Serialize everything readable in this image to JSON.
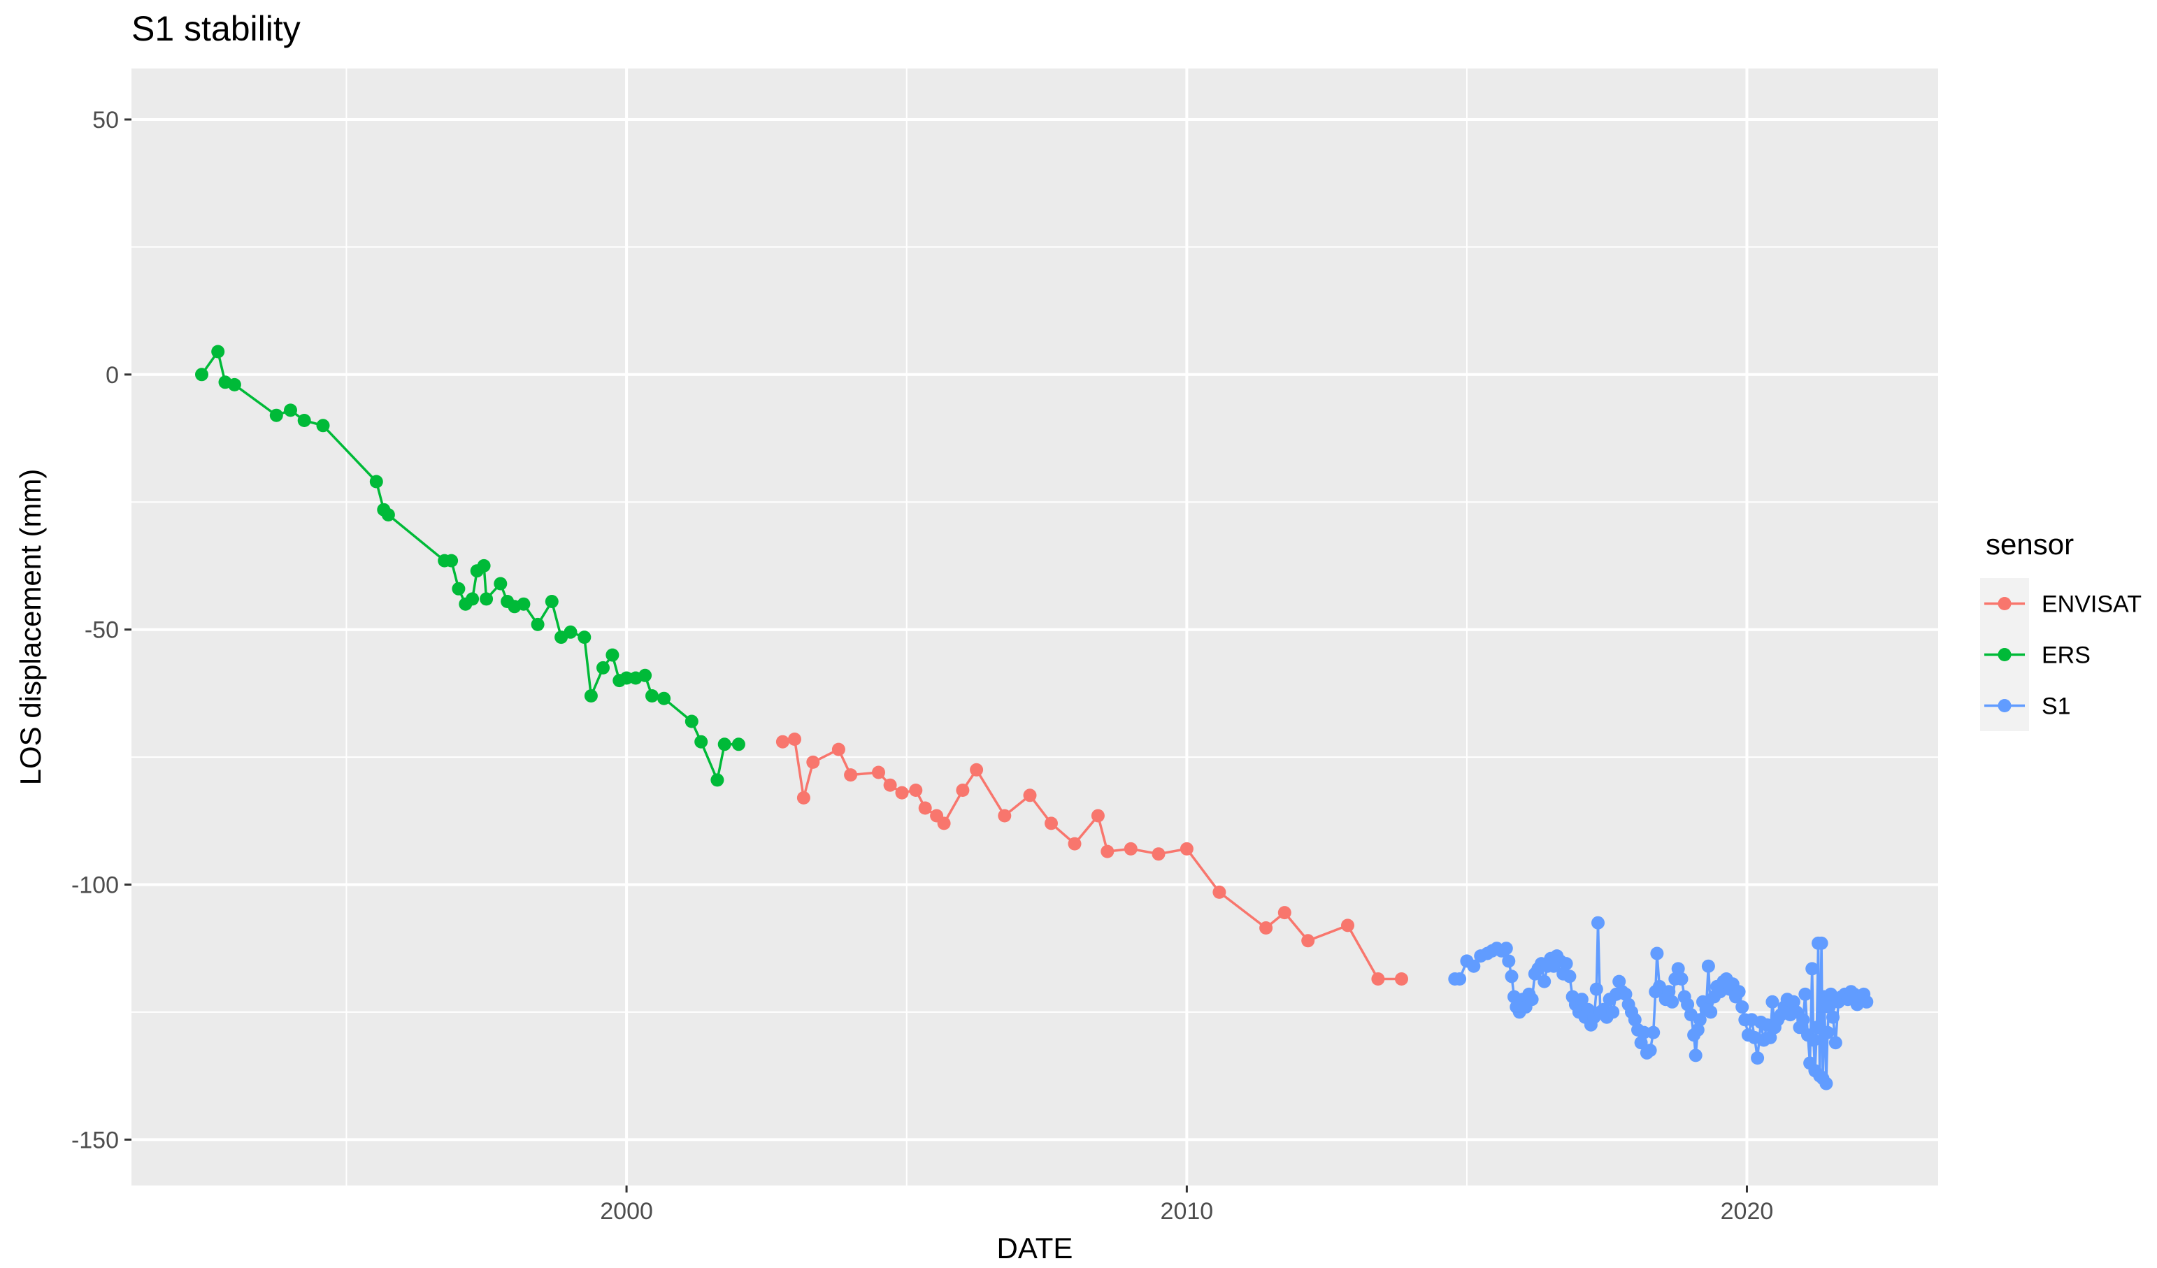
{
  "chart_data": {
    "type": "line",
    "title": "S1 stability",
    "xlabel": "DATE",
    "ylabel": "LOS displacement (mm)",
    "x_scale": "date",
    "xlim": [
      "1991-03-01",
      "2023-06-01"
    ],
    "ylim": [
      -159,
      60
    ],
    "x_ticks": [
      {
        "value": "2000-01-01",
        "label": "2000"
      },
      {
        "value": "2010-01-01",
        "label": "2010"
      },
      {
        "value": "2020-01-01",
        "label": "2020"
      }
    ],
    "y_ticks": [
      {
        "value": 50,
        "label": "50"
      },
      {
        "value": 0,
        "label": "0"
      },
      {
        "value": -50,
        "label": "-50"
      },
      {
        "value": -100,
        "label": "-100"
      },
      {
        "value": -150,
        "label": "-150"
      }
    ],
    "grid": true,
    "legend": {
      "title": "sensor",
      "position": "right",
      "entries": [
        {
          "label": "ENVISAT",
          "color": "#F8766D"
        },
        {
          "label": "ERS",
          "color": "#00BA38"
        },
        {
          "label": "S1",
          "color": "#619CFF"
        }
      ]
    },
    "series": [
      {
        "name": "ERS",
        "color": "#00BA38",
        "points": [
          [
            "1992-06-01",
            0
          ],
          [
            "1992-09-15",
            4.5
          ],
          [
            "1992-11-01",
            -1.5
          ],
          [
            "1993-01-01",
            -2
          ],
          [
            "1993-10-01",
            -8
          ],
          [
            "1994-01-01",
            -7
          ],
          [
            "1994-04-01",
            -9
          ],
          [
            "1994-08-01",
            -10
          ],
          [
            "1995-07-15",
            -21
          ],
          [
            "1995-09-01",
            -26.5
          ],
          [
            "1995-10-01",
            -27.5
          ],
          [
            "1996-10-01",
            -36.5
          ],
          [
            "1996-11-15",
            -36.5
          ],
          [
            "1997-01-01",
            -42
          ],
          [
            "1997-02-15",
            -45
          ],
          [
            "1997-04-01",
            -44
          ],
          [
            "1997-05-01",
            -38.5
          ],
          [
            "1997-06-15",
            -37.5
          ],
          [
            "1997-07-01",
            -44
          ],
          [
            "1997-10-01",
            -41
          ],
          [
            "1997-11-15",
            -44.5
          ],
          [
            "1998-01-01",
            -45.5
          ],
          [
            "1998-03-01",
            -45
          ],
          [
            "1998-06-01",
            -49
          ],
          [
            "1998-09-01",
            -44.5
          ],
          [
            "1998-11-01",
            -51.5
          ],
          [
            "1999-01-01",
            -50.5
          ],
          [
            "1999-04-01",
            -51.5
          ],
          [
            "1999-05-15",
            -63
          ],
          [
            "1999-08-01",
            -57.5
          ],
          [
            "1999-10-01",
            -55
          ],
          [
            "1999-11-15",
            -60
          ],
          [
            "2000-01-01",
            -59.5
          ],
          [
            "2000-03-01",
            -59.5
          ],
          [
            "2000-05-01",
            -59
          ],
          [
            "2000-06-15",
            -63
          ],
          [
            "2000-09-01",
            -63.5
          ],
          [
            "2001-03-01",
            -68
          ],
          [
            "2001-05-01",
            -72
          ],
          [
            "2001-08-15",
            -79.5
          ],
          [
            "2001-10-01",
            -72.5
          ],
          [
            "2002-01-01",
            -72.5
          ]
        ]
      },
      {
        "name": "ENVISAT",
        "color": "#F8766D",
        "points": [
          [
            "2002-10-15",
            -72
          ],
          [
            "2003-01-01",
            -71.5
          ],
          [
            "2003-03-01",
            -83
          ],
          [
            "2003-05-01",
            -76
          ],
          [
            "2003-10-15",
            -73.5
          ],
          [
            "2004-01-01",
            -78.5
          ],
          [
            "2004-07-01",
            -78
          ],
          [
            "2004-09-15",
            -80.5
          ],
          [
            "2004-12-01",
            -82
          ],
          [
            "2005-03-01",
            -81.5
          ],
          [
            "2005-05-01",
            -85
          ],
          [
            "2005-07-15",
            -86.5
          ],
          [
            "2005-09-01",
            -88
          ],
          [
            "2006-01-01",
            -81.5
          ],
          [
            "2006-04-01",
            -77.5
          ],
          [
            "2006-10-01",
            -86.5
          ],
          [
            "2007-03-15",
            -82.5
          ],
          [
            "2007-08-01",
            -88
          ],
          [
            "2008-01-01",
            -92
          ],
          [
            "2008-06-01",
            -86.5
          ],
          [
            "2008-08-01",
            -93.5
          ],
          [
            "2009-01-01",
            -93
          ],
          [
            "2009-07-01",
            -94
          ],
          [
            "2010-01-01",
            -93
          ],
          [
            "2010-08-01",
            -101.5
          ],
          [
            "2011-06-01",
            -108.5
          ],
          [
            "2011-10-01",
            -105.5
          ],
          [
            "2012-03-01",
            -111
          ],
          [
            "2012-11-15",
            -108
          ],
          [
            "2013-06-01",
            -118.5
          ],
          [
            "2013-11-01",
            -118.5
          ]
        ]
      },
      {
        "name": "S1",
        "color": "#619CFF",
        "points": [
          [
            "2014-10-15",
            -118.5
          ],
          [
            "2014-11-15",
            -118.5
          ],
          [
            "2015-01-01",
            -115
          ],
          [
            "2015-02-15",
            -116
          ],
          [
            "2015-04-01",
            -114
          ],
          [
            "2015-05-15",
            -113.5
          ],
          [
            "2015-06-15",
            -113
          ],
          [
            "2015-07-15",
            -112.5
          ],
          [
            "2015-08-15",
            -113
          ],
          [
            "2015-09-15",
            -112.5
          ],
          [
            "2015-10-01",
            -115
          ],
          [
            "2015-10-20",
            -118
          ],
          [
            "2015-11-05",
            -122
          ],
          [
            "2015-11-20",
            -124
          ],
          [
            "2015-12-10",
            -125
          ],
          [
            "2016-01-01",
            -122.5
          ],
          [
            "2016-01-20",
            -124
          ],
          [
            "2016-02-10",
            -121.5
          ],
          [
            "2016-03-01",
            -122.5
          ],
          [
            "2016-03-20",
            -117.5
          ],
          [
            "2016-04-10",
            -116.5
          ],
          [
            "2016-05-01",
            -115.5
          ],
          [
            "2016-05-20",
            -119
          ],
          [
            "2016-06-10",
            -116
          ],
          [
            "2016-07-01",
            -114.5
          ],
          [
            "2016-07-20",
            -116
          ],
          [
            "2016-08-10",
            -114
          ],
          [
            "2016-09-01",
            -115
          ],
          [
            "2016-09-20",
            -117.5
          ],
          [
            "2016-10-10",
            -115.5
          ],
          [
            "2016-11-01",
            -118
          ],
          [
            "2016-11-20",
            -122
          ],
          [
            "2016-12-10",
            -123.5
          ],
          [
            "2017-01-01",
            -125
          ],
          [
            "2017-01-20",
            -122.5
          ],
          [
            "2017-02-10",
            -126
          ],
          [
            "2017-03-01",
            -124.5
          ],
          [
            "2017-03-20",
            -127.5
          ],
          [
            "2017-04-10",
            -126
          ],
          [
            "2017-04-25",
            -120.5
          ],
          [
            "2017-05-05",
            -107.5
          ],
          [
            "2017-05-20",
            -125
          ],
          [
            "2017-06-10",
            -124.5
          ],
          [
            "2017-07-01",
            -126
          ],
          [
            "2017-07-20",
            -122.5
          ],
          [
            "2017-08-10",
            -125
          ],
          [
            "2017-09-01",
            -121.5
          ],
          [
            "2017-09-20",
            -119
          ],
          [
            "2017-10-10",
            -121
          ],
          [
            "2017-11-01",
            -121.5
          ],
          [
            "2017-11-20",
            -123.5
          ],
          [
            "2017-12-10",
            -125
          ],
          [
            "2018-01-01",
            -126.5
          ],
          [
            "2018-01-20",
            -128.5
          ],
          [
            "2018-02-10",
            -131
          ],
          [
            "2018-03-01",
            -129
          ],
          [
            "2018-03-20",
            -133
          ],
          [
            "2018-04-10",
            -132.5
          ],
          [
            "2018-05-01",
            -129
          ],
          [
            "2018-05-15",
            -121
          ],
          [
            "2018-05-25",
            -113.5
          ],
          [
            "2018-06-10",
            -120
          ],
          [
            "2018-07-01",
            -121
          ],
          [
            "2018-07-20",
            -122.5
          ],
          [
            "2018-08-10",
            -121
          ],
          [
            "2018-09-01",
            -123
          ],
          [
            "2018-09-20",
            -118.5
          ],
          [
            "2018-10-10",
            -116.5
          ],
          [
            "2018-11-01",
            -118.5
          ],
          [
            "2018-11-20",
            -122
          ],
          [
            "2018-12-10",
            -123.5
          ],
          [
            "2019-01-01",
            -125.5
          ],
          [
            "2019-01-20",
            -129.5
          ],
          [
            "2019-02-01",
            -133.5
          ],
          [
            "2019-02-15",
            -128.5
          ],
          [
            "2019-03-01",
            -126.5
          ],
          [
            "2019-03-20",
            -123
          ],
          [
            "2019-04-10",
            -124.5
          ],
          [
            "2019-04-25",
            -116
          ],
          [
            "2019-05-10",
            -125
          ],
          [
            "2019-06-01",
            -122
          ],
          [
            "2019-06-20",
            -120
          ],
          [
            "2019-07-10",
            -121
          ],
          [
            "2019-08-01",
            -119
          ],
          [
            "2019-08-20",
            -118.5
          ],
          [
            "2019-09-10",
            -120.5
          ],
          [
            "2019-10-01",
            -119.5
          ],
          [
            "2019-10-20",
            -122
          ],
          [
            "2019-11-10",
            -121
          ],
          [
            "2019-12-01",
            -124
          ],
          [
            "2019-12-20",
            -126.5
          ],
          [
            "2020-01-10",
            -129.5
          ],
          [
            "2020-02-01",
            -126.5
          ],
          [
            "2020-02-20",
            -130
          ],
          [
            "2020-03-10",
            -134
          ],
          [
            "2020-04-01",
            -127
          ],
          [
            "2020-04-20",
            -130.5
          ],
          [
            "2020-05-10",
            -127.5
          ],
          [
            "2020-06-01",
            -130
          ],
          [
            "2020-06-15",
            -123
          ],
          [
            "2020-07-01",
            -128
          ],
          [
            "2020-07-20",
            -126.5
          ],
          [
            "2020-08-10",
            -125.5
          ],
          [
            "2020-09-01",
            -124
          ],
          [
            "2020-09-20",
            -122.5
          ],
          [
            "2020-10-10",
            -125.5
          ],
          [
            "2020-11-01",
            -123
          ],
          [
            "2020-11-20",
            -125
          ],
          [
            "2020-12-10",
            -128
          ],
          [
            "2021-01-01",
            -126.5
          ],
          [
            "2021-01-15",
            -121.5
          ],
          [
            "2021-02-01",
            -129.5
          ],
          [
            "2021-02-15",
            -135
          ],
          [
            "2021-03-01",
            -116.5
          ],
          [
            "2021-03-10",
            -130.5
          ],
          [
            "2021-03-20",
            -136.5
          ],
          [
            "2021-04-01",
            -128
          ],
          [
            "2021-04-10",
            -111.5
          ],
          [
            "2021-04-20",
            -137.5
          ],
          [
            "2021-05-01",
            -111.5
          ],
          [
            "2021-05-10",
            -138
          ],
          [
            "2021-05-20",
            -122
          ],
          [
            "2021-06-01",
            -139
          ],
          [
            "2021-06-10",
            -129
          ],
          [
            "2021-06-20",
            -124
          ],
          [
            "2021-07-01",
            -121.5
          ],
          [
            "2021-07-15",
            -126
          ],
          [
            "2021-08-01",
            -131
          ],
          [
            "2021-08-20",
            -123
          ],
          [
            "2021-09-10",
            -122
          ],
          [
            "2021-10-01",
            -121.5
          ],
          [
            "2021-10-20",
            -122.5
          ],
          [
            "2021-11-10",
            -121
          ],
          [
            "2021-12-01",
            -121.5
          ],
          [
            "2021-12-20",
            -123.5
          ],
          [
            "2022-01-10",
            -122
          ],
          [
            "2022-02-01",
            -121.5
          ],
          [
            "2022-02-20",
            -123
          ]
        ]
      }
    ]
  }
}
